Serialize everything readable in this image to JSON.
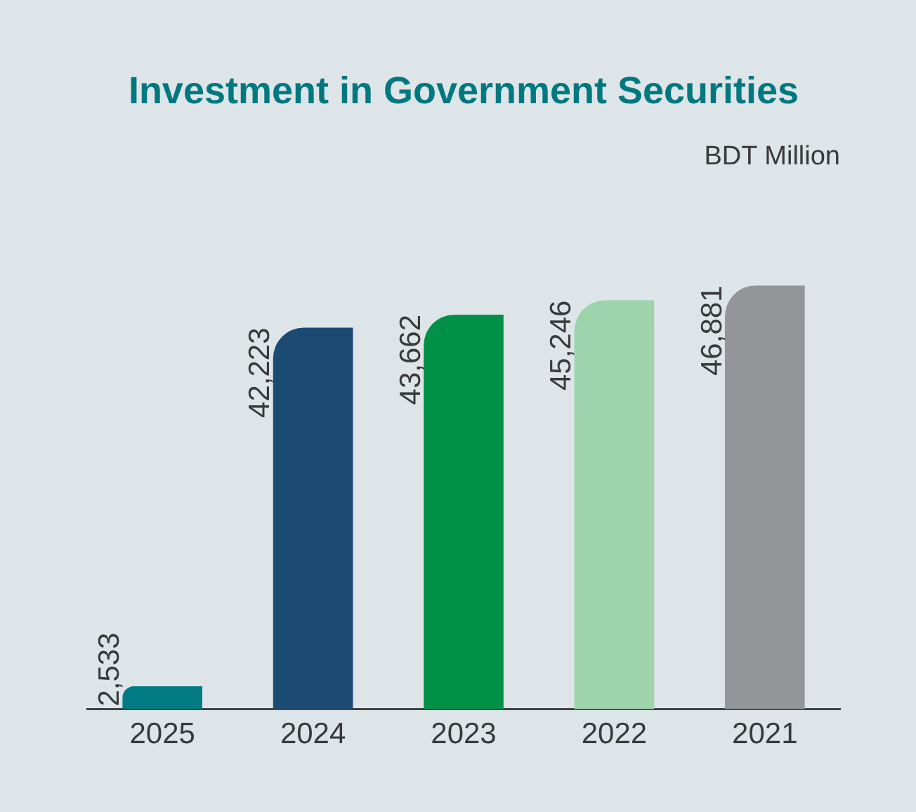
{
  "chart_data": {
    "type": "bar",
    "title": "Investment in Government Securities",
    "subtitle": "BDT Million",
    "categories": [
      "2025",
      "2024",
      "2023",
      "2022",
      "2021"
    ],
    "values": [
      2533,
      42223,
      43662,
      45246,
      46881
    ],
    "colors": [
      "#007b83",
      "#1b4b72",
      "#009046",
      "#9dd4ac",
      "#939598"
    ],
    "value_labels": [
      "2,533",
      "42,223",
      "43,662",
      "45,246",
      "46,881"
    ],
    "grid": false,
    "legend": false
  }
}
